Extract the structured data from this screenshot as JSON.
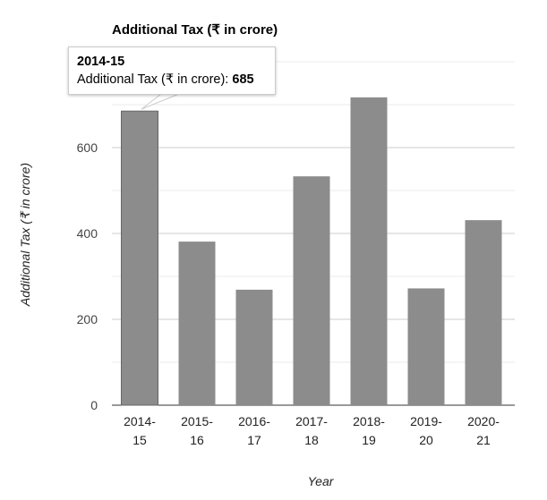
{
  "chart_data": {
    "type": "bar",
    "title": "Additional Tax (₹ in crore)",
    "xlabel": "Year",
    "ylabel": "Additional Tax (₹ in crore)",
    "categories": [
      "2014-15",
      "2015-16",
      "2016-17",
      "2017-18",
      "2018-19",
      "2019-20",
      "2020-21"
    ],
    "category_lines": [
      [
        "2014-",
        "15"
      ],
      [
        "2015-",
        "16"
      ],
      [
        "2016-",
        "17"
      ],
      [
        "2017-",
        "18"
      ],
      [
        "2018-",
        "19"
      ],
      [
        "2019-",
        "20"
      ],
      [
        "2020-",
        "21"
      ]
    ],
    "values": [
      685,
      381,
      269,
      533,
      717,
      272,
      431
    ],
    "ylim": [
      0,
      800
    ],
    "yticks": [
      0,
      200,
      400,
      600
    ],
    "minor_gridlines": [
      100,
      300,
      500,
      700,
      800
    ],
    "grid": true,
    "legend": "none",
    "bar_color": "#8c8c8c",
    "tooltip": {
      "category": "2014-15",
      "label": "Additional Tax (₹ in crore): ",
      "value": "685"
    }
  }
}
